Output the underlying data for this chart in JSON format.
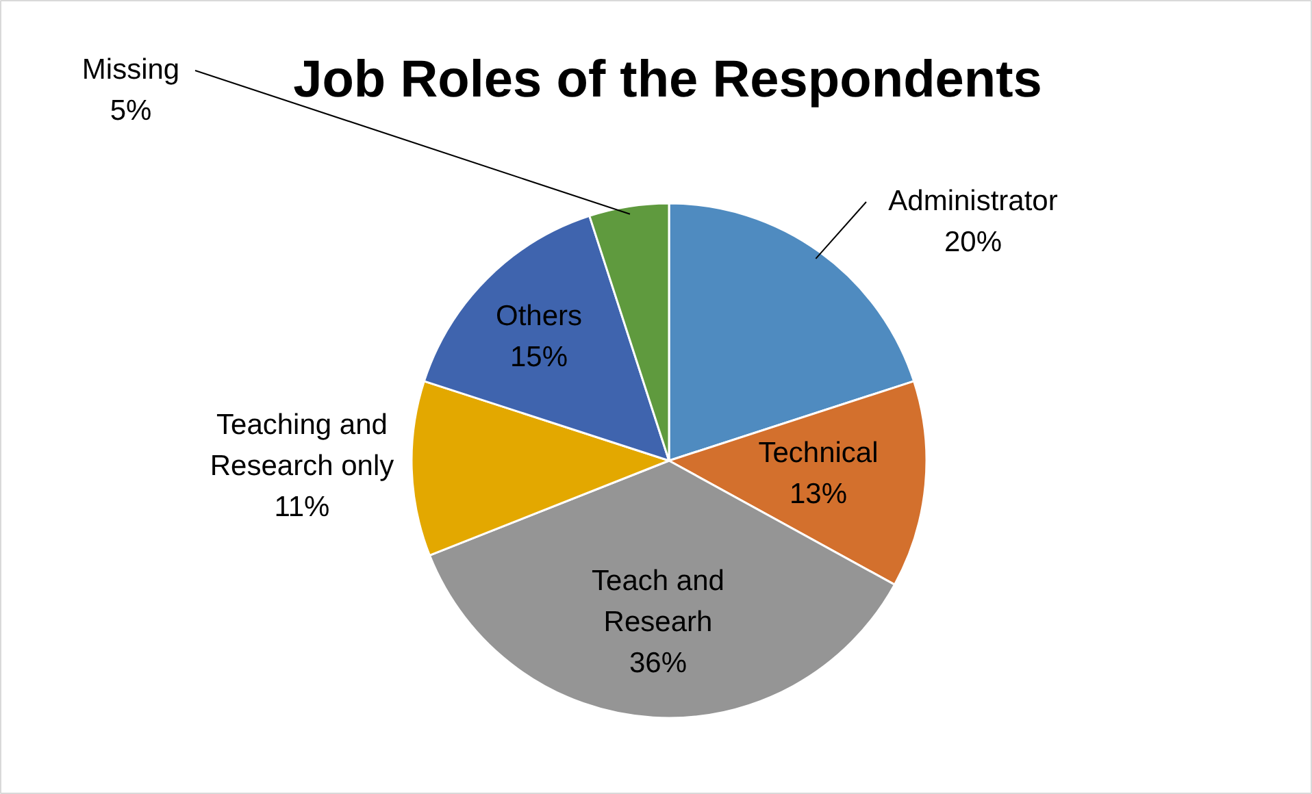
{
  "chart_data": {
    "type": "pie",
    "title": "Job Roles of the Respondents",
    "categories": [
      "Administrator",
      "Technical",
      "Teach and Researh",
      "Teaching and Research only",
      "Others",
      "Missing"
    ],
    "values": [
      20,
      13,
      36,
      11,
      15,
      5
    ],
    "value_labels": [
      "20%",
      "13%",
      "36%",
      "11%",
      "15%",
      "5%"
    ],
    "colors": [
      "#4f8bc0",
      "#d3702d",
      "#959595",
      "#e3a800",
      "#3f64ae",
      "#5f9a3e"
    ]
  }
}
